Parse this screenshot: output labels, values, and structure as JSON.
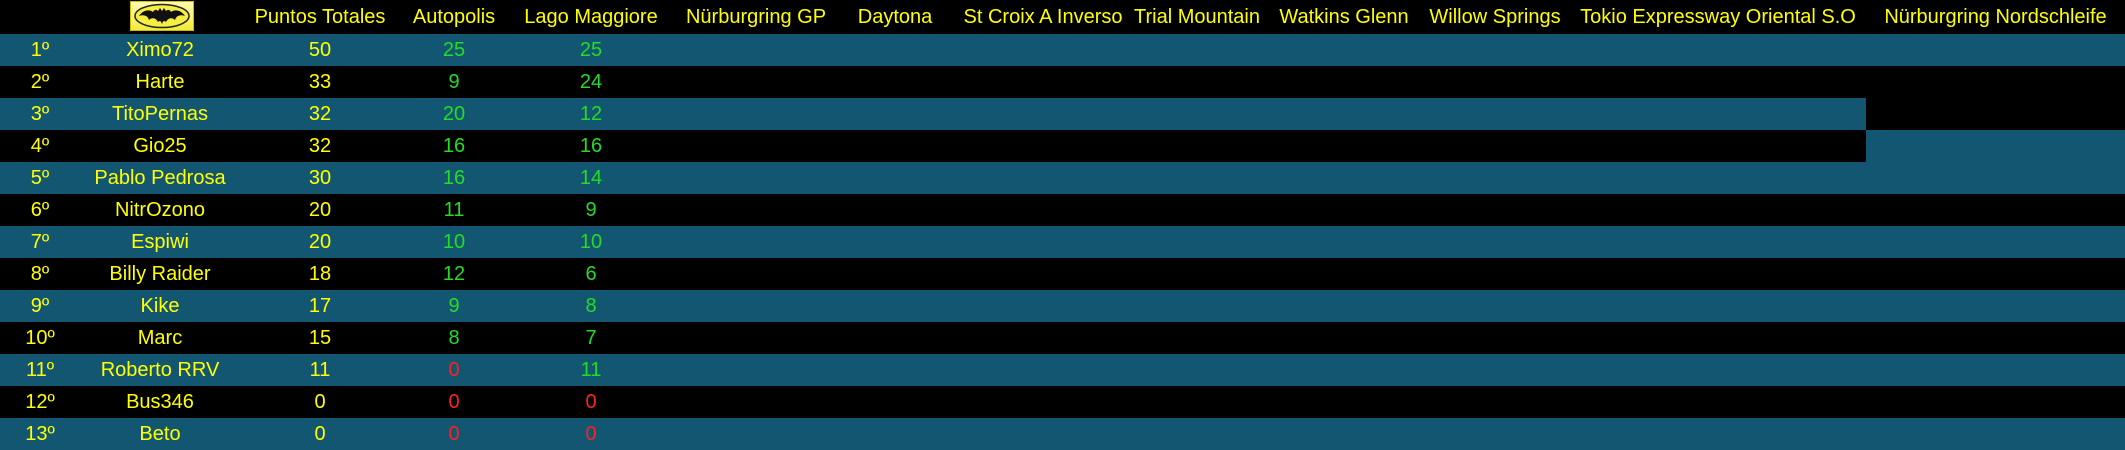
{
  "colors": {
    "row_blue": "#135672",
    "row_black": "#000000",
    "text_yellow": "#FFFF00",
    "points_green": "#22DD22",
    "points_red": "#FF2020"
  },
  "header": {
    "logo": "bat-logo-icon",
    "columns": [
      "Puntos Totales",
      "Autopolis",
      "Lago Maggiore",
      "Nürburgring GP",
      "Daytona",
      "St Croix A Inverso",
      "Trial Mountain",
      "Watkins Glenn",
      "Willow Springs",
      "Tokio Expressway Oriental S.O",
      "Nürburgring Nordschleife"
    ]
  },
  "rows": [
    {
      "pos": "1º",
      "name": "Ximo72",
      "total": "50",
      "r1": "25",
      "r2": "25"
    },
    {
      "pos": "2º",
      "name": "Harte",
      "total": "33",
      "r1": "9",
      "r2": "24"
    },
    {
      "pos": "3º",
      "name": "TitoPernas",
      "total": "32",
      "r1": "20",
      "r2": "12"
    },
    {
      "pos": "4º",
      "name": "Gio25",
      "total": "32",
      "r1": "16",
      "r2": "16"
    },
    {
      "pos": "5º",
      "name": "Pablo Pedrosa",
      "total": "30",
      "r1": "16",
      "r2": "14"
    },
    {
      "pos": "6º",
      "name": "NitrOzono",
      "total": "20",
      "r1": "11",
      "r2": "9"
    },
    {
      "pos": "7º",
      "name": "Espiwi",
      "total": "20",
      "r1": "10",
      "r2": "10"
    },
    {
      "pos": "8º",
      "name": "Billy Raider",
      "total": "18",
      "r1": "12",
      "r2": "6"
    },
    {
      "pos": "9º",
      "name": "Kike",
      "total": "17",
      "r1": "9",
      "r2": "8"
    },
    {
      "pos": "10º",
      "name": "Marc",
      "total": "15",
      "r1": "8",
      "r2": "7"
    },
    {
      "pos": "11º",
      "name": "Roberto RRV",
      "total": "11",
      "r1": "0",
      "r2": "11"
    },
    {
      "pos": "12º",
      "name": "Bus346",
      "total": "0",
      "r1": "0",
      "r2": "0"
    },
    {
      "pos": "13º",
      "name": "Beto",
      "total": "0",
      "r1": "0",
      "r2": "0"
    }
  ]
}
